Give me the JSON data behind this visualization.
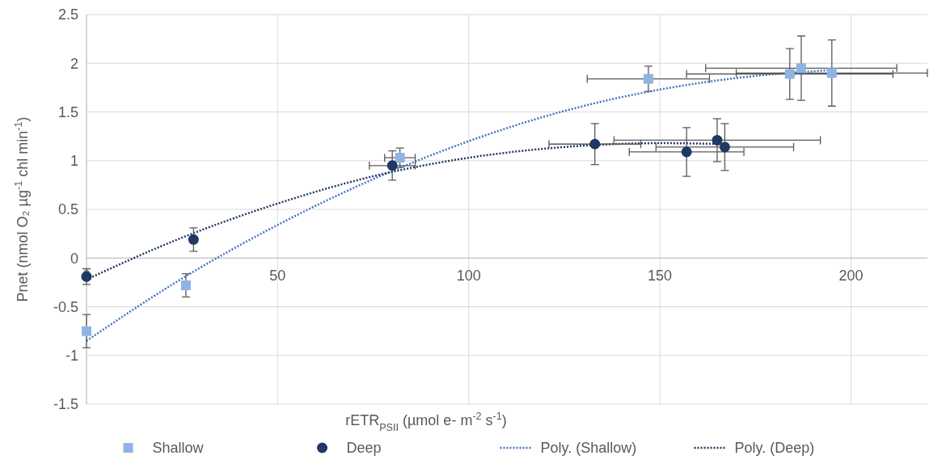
{
  "chart_data": {
    "type": "scatter",
    "xlabel": "rETR$_{PSII}$ (µmol e- m$^{-2}$ s$^{-1}$)",
    "ylabel": "Pnet  (nmol O₂ µg$^{-1}$ chl min$^{-1}$)",
    "xlim": [
      0,
      220
    ],
    "xticks": [
      0,
      50,
      100,
      150,
      200
    ],
    "ylim": [
      -1.5,
      2.5
    ],
    "yticks": [
      -1.5,
      -1,
      -0.5,
      0,
      0.5,
      1,
      1.5,
      2,
      2.5
    ],
    "grid": true,
    "legend": "bottom",
    "series": [
      {
        "name": "Shallow",
        "type": "scatter",
        "marker": "square",
        "color": "#8eb4e3",
        "x": [
          0,
          26,
          82,
          147,
          184,
          187,
          195
        ],
        "values": [
          -0.75,
          -0.28,
          1.03,
          1.84,
          1.89,
          1.95,
          1.9
        ],
        "errors": [
          0.17,
          0.12,
          0.1,
          0.13,
          0.26,
          0.33,
          0.34
        ],
        "xerrors": [
          null,
          null,
          4,
          16,
          27,
          25,
          25
        ]
      },
      {
        "name": "Deep",
        "type": "scatter",
        "marker": "circle",
        "color": "#1f3864",
        "x": [
          0,
          28,
          80,
          133,
          157,
          165,
          167
        ],
        "values": [
          -0.19,
          0.19,
          0.95,
          1.17,
          1.09,
          1.21,
          1.14
        ],
        "errors": [
          0.08,
          0.12,
          0.15,
          0.21,
          0.25,
          0.22,
          0.24
        ],
        "xerrors": [
          null,
          null,
          6,
          12,
          15,
          27,
          18
        ]
      },
      {
        "name": "Poly. (Shallow)",
        "type": "line",
        "marker": "none",
        "line_style": "dotted",
        "color": "#4472c4",
        "x": [
          0,
          25,
          50,
          75,
          100,
          125,
          150,
          175,
          195
        ],
        "values": [
          -0.85,
          -0.21,
          0.34,
          0.81,
          1.2,
          1.51,
          1.73,
          1.87,
          1.93
        ]
      },
      {
        "name": "Poly. (Deep)",
        "type": "line",
        "marker": "none",
        "line_style": "dotted",
        "color": "#203864",
        "x": [
          0,
          25,
          50,
          75,
          100,
          125,
          150,
          167
        ],
        "values": [
          -0.22,
          0.21,
          0.56,
          0.84,
          1.03,
          1.14,
          1.18,
          1.17
        ]
      }
    ]
  }
}
